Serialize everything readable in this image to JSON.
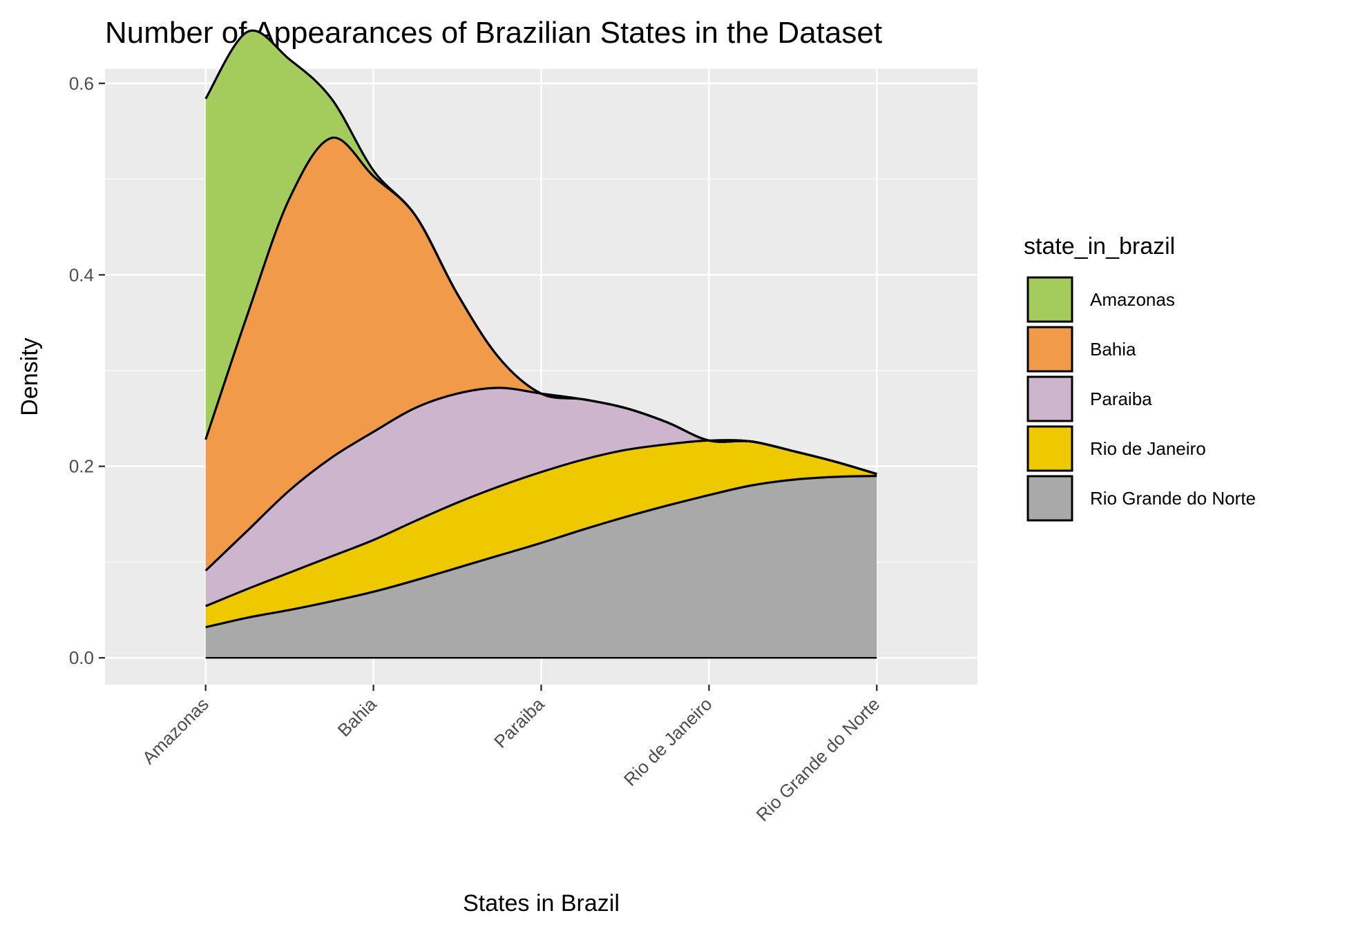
{
  "chart_data": {
    "type": "area",
    "title": "Number of Appearances of Brazilian States in the Dataset",
    "xlabel": "States in Brazil",
    "ylabel": "Density",
    "categories": [
      "Amazonas",
      "Bahia",
      "Paraiba",
      "Rio de Janeiro",
      "Rio Grande do Norte"
    ],
    "xlim": [
      0.4,
      5.6
    ],
    "ylim": [
      -0.028,
      0.615
    ],
    "yticks": [
      0.0,
      0.2,
      0.4,
      0.6
    ],
    "ytick_labels": [
      "0.0",
      "0.2",
      "0.4",
      "0.6"
    ],
    "stacked": true,
    "grid": true,
    "legend": {
      "title": "state_in_brazil",
      "position": "right"
    },
    "x": [
      1.0,
      1.25,
      1.5,
      1.75,
      2.0,
      2.25,
      2.5,
      2.75,
      3.0,
      3.25,
      3.5,
      3.75,
      4.0,
      4.25,
      4.5,
      4.75,
      5.0
    ],
    "series": [
      {
        "name": "Amazonas",
        "color": "#A3CC5C",
        "values": [
          0.356,
          0.295,
          0.145,
          0.041,
          0.006,
          0.0,
          0.0,
          0.0,
          0.0,
          0.0,
          0.0,
          0.0,
          0.0,
          0.0,
          0.0,
          0.0,
          0.0
        ]
      },
      {
        "name": "Bahia",
        "color": "#F09A4A",
        "values": [
          0.137,
          0.226,
          0.305,
          0.334,
          0.267,
          0.201,
          0.104,
          0.031,
          0.0,
          0.0,
          0.0,
          0.0,
          0.0,
          0.0,
          0.0,
          0.0,
          0.0
        ]
      },
      {
        "name": "Paraiba",
        "color": "#CDB5CD",
        "values": [
          0.037,
          0.061,
          0.086,
          0.103,
          0.113,
          0.118,
          0.114,
          0.103,
          0.082,
          0.063,
          0.044,
          0.023,
          0.0,
          0.0,
          0.0,
          0.0,
          0.0
        ]
      },
      {
        "name": "Rio de Janeiro",
        "color": "#EEC900",
        "values": [
          0.022,
          0.03,
          0.039,
          0.047,
          0.054,
          0.062,
          0.068,
          0.072,
          0.074,
          0.073,
          0.07,
          0.064,
          0.057,
          0.046,
          0.03,
          0.016,
          0.002
        ]
      },
      {
        "name": "Rio Grande do Norte",
        "color": "#A9A9A9",
        "values": [
          0.032,
          0.042,
          0.05,
          0.059,
          0.069,
          0.081,
          0.094,
          0.107,
          0.12,
          0.134,
          0.147,
          0.159,
          0.17,
          0.18,
          0.186,
          0.189,
          0.19
        ]
      }
    ]
  }
}
